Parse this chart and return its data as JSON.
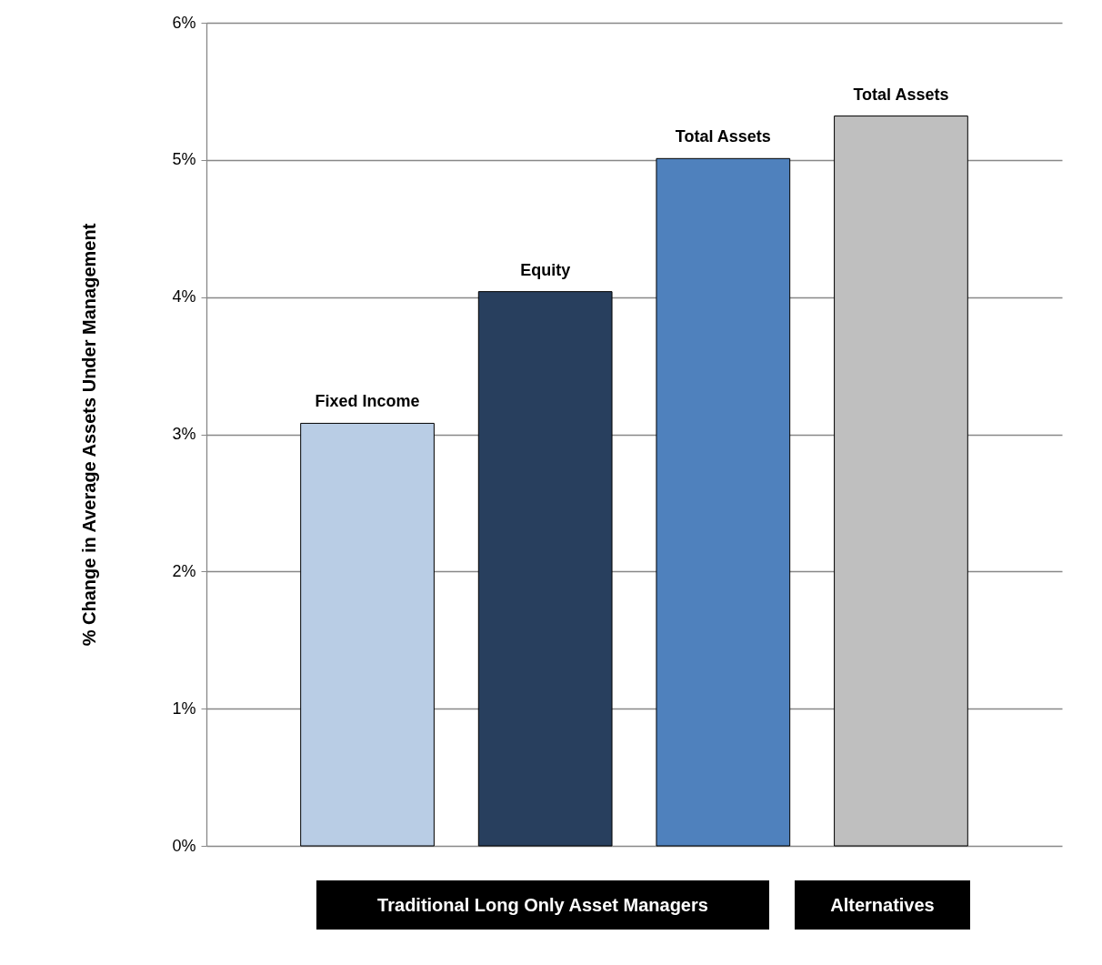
{
  "chart_data": {
    "type": "bar",
    "ylabel": "% Change in Average Assets Under Management",
    "categories": [
      "Fixed Income",
      "Equity",
      "Total Assets",
      "Total Assets"
    ],
    "values": [
      3.08,
      4.04,
      5.01,
      5.32
    ],
    "colors": [
      "#b9cde5",
      "#283f5e",
      "#4f81bd",
      "#bfbfbf"
    ],
    "ylim": [
      0,
      6
    ],
    "yticks": [
      {
        "value": 0,
        "label": "0%"
      },
      {
        "value": 1,
        "label": "1%"
      },
      {
        "value": 2,
        "label": "2%"
      },
      {
        "value": 3,
        "label": "3%"
      },
      {
        "value": 4,
        "label": "4%"
      },
      {
        "value": 5,
        "label": "5%"
      },
      {
        "value": 6,
        "label": "6%"
      }
    ],
    "grid": "y",
    "tick_labels": "y",
    "annotations": [
      "Traditional Long Only Asset Managers",
      "Alternatives"
    ]
  }
}
